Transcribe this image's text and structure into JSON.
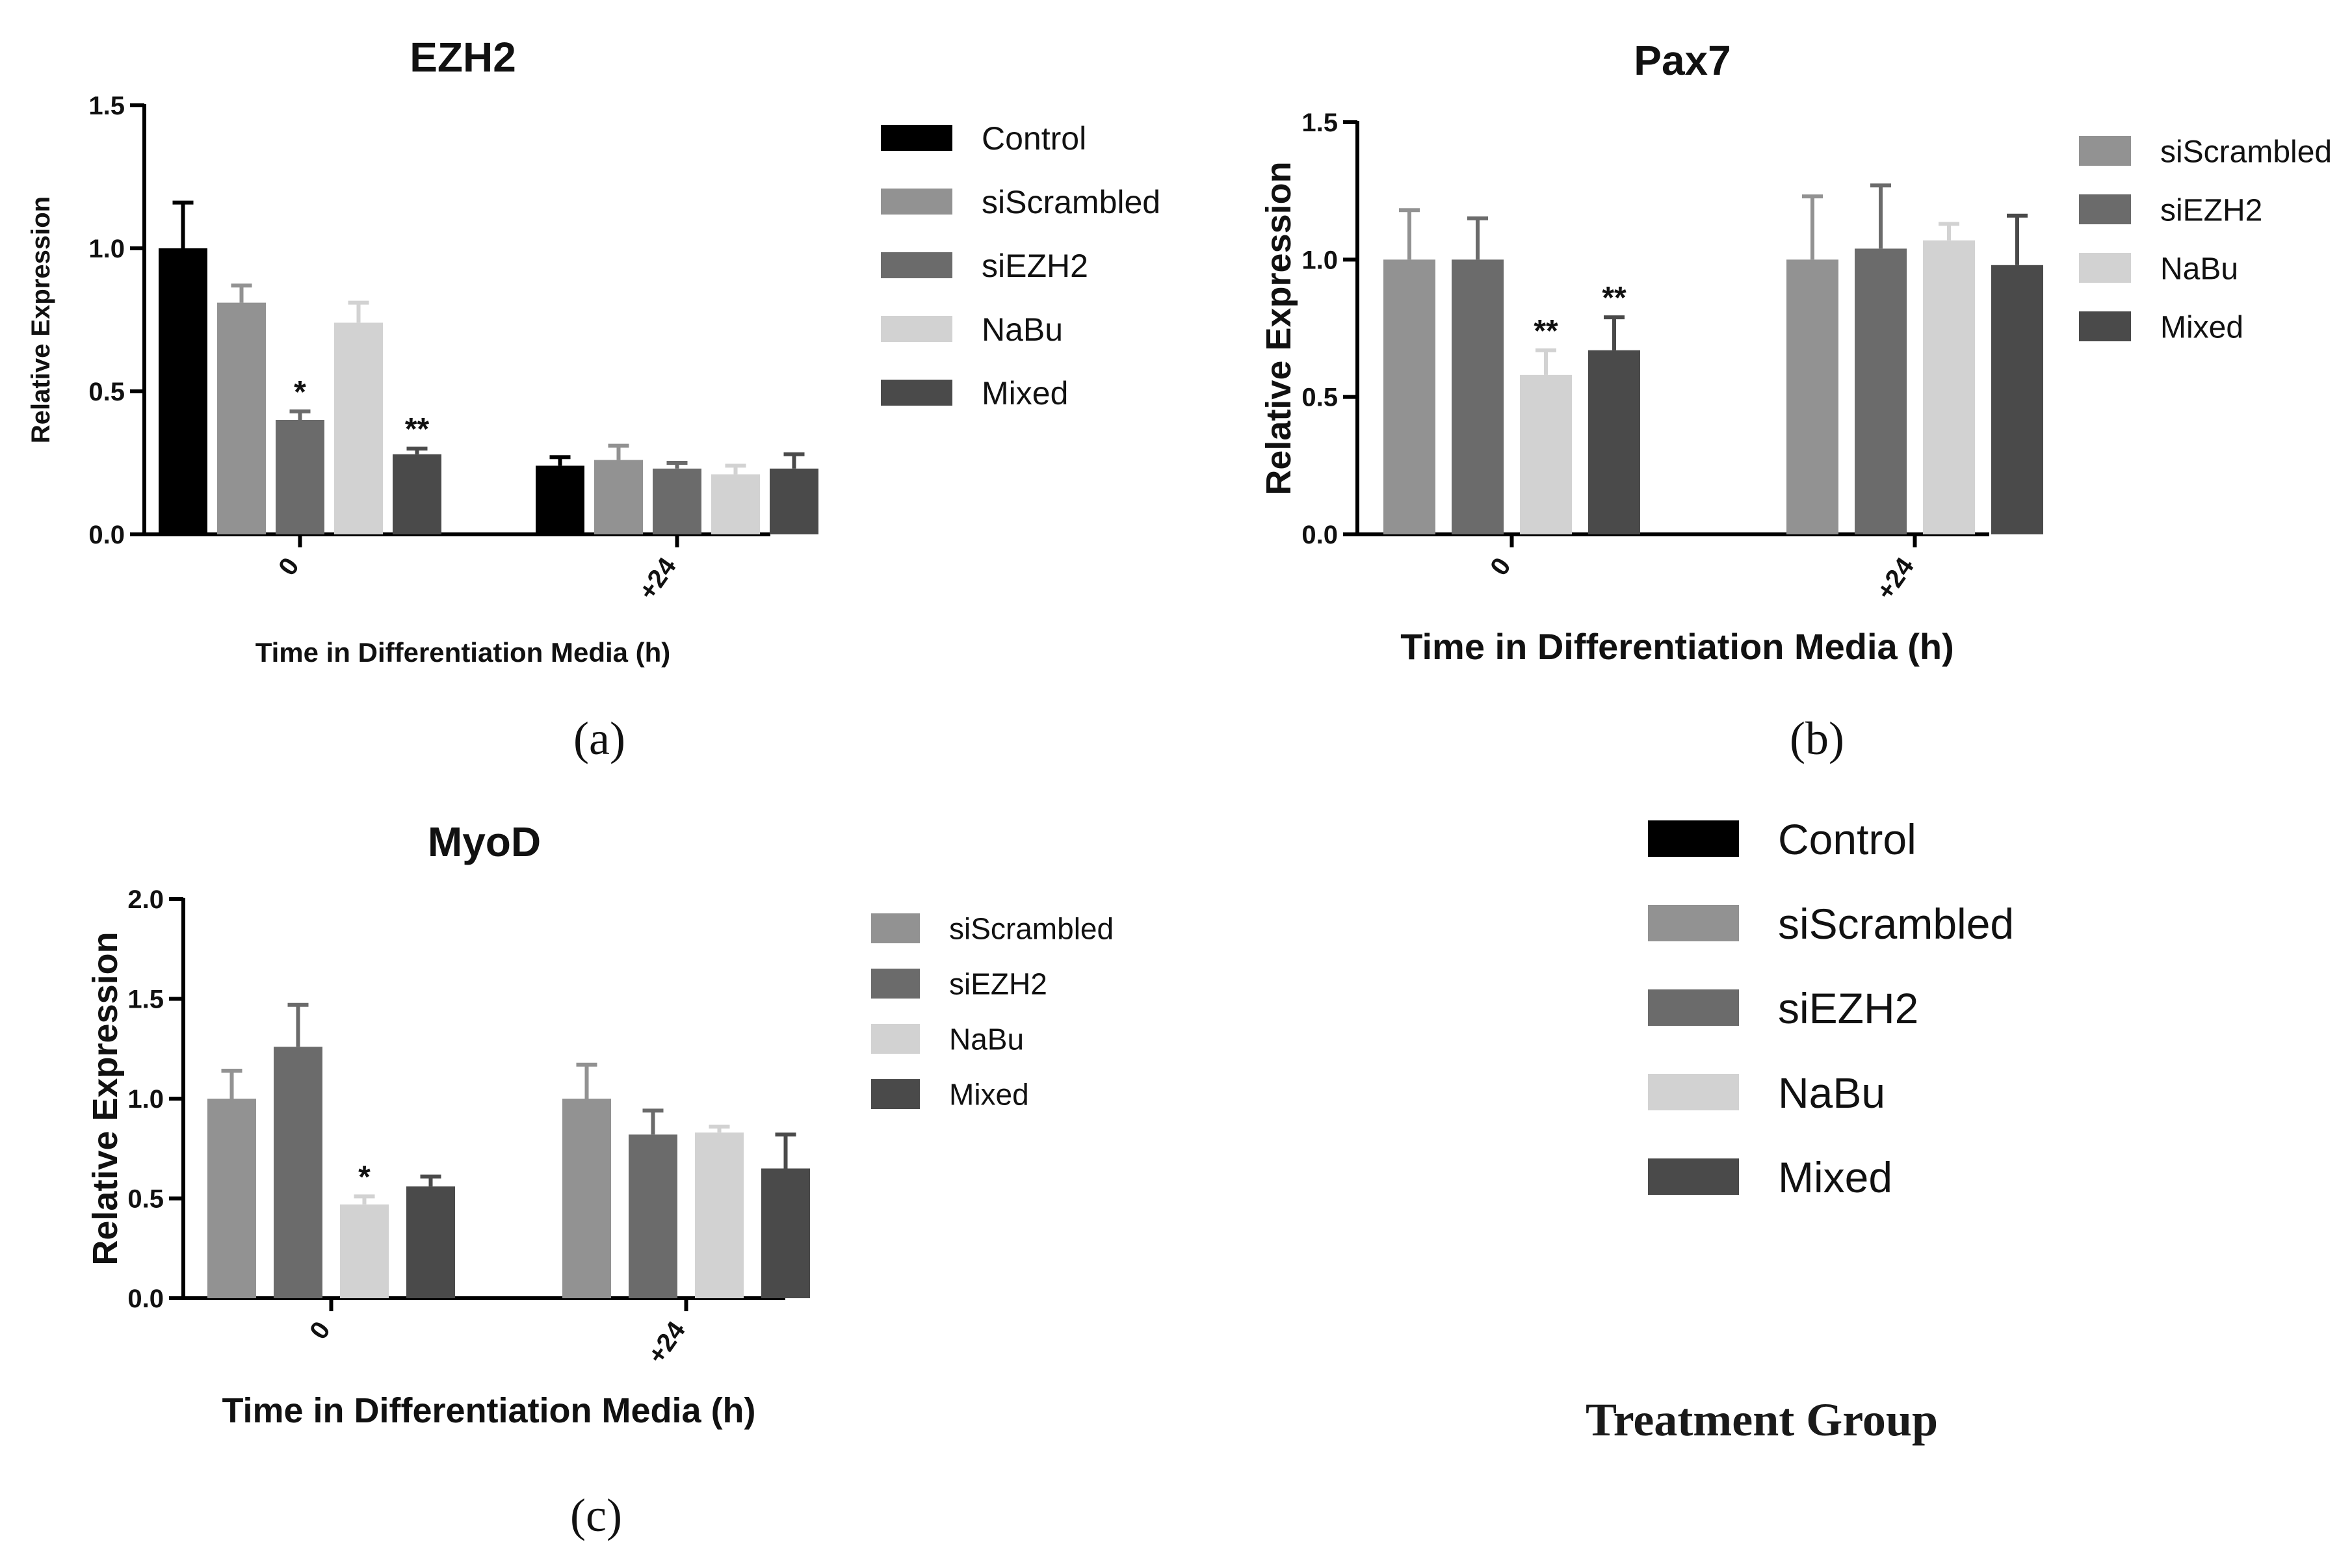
{
  "colors": {
    "Control": "#000000",
    "siScrambled": "#929292",
    "siEZH2": "#6b6b6b",
    "NaBu": "#d2d2d2",
    "Mixed": "#4a4a4a",
    "axis": "#000000"
  },
  "chart_data": [
    {
      "type": "bar",
      "title": "EZH2",
      "xlabel": "Time in Differentiation Media (h)",
      "ylabel": "Relative Expression",
      "categories": [
        "0",
        "+24"
      ],
      "ylim": [
        0,
        1.5
      ],
      "yticks": [
        "0.0",
        "0.5",
        "1.0",
        "1.5"
      ],
      "series": [
        {
          "name": "Control",
          "values": [
            1.0,
            0.24
          ],
          "errors": [
            0.16,
            0.03
          ]
        },
        {
          "name": "siScrambled",
          "values": [
            0.81,
            0.26
          ],
          "errors": [
            0.06,
            0.05
          ]
        },
        {
          "name": "siEZH2",
          "values": [
            0.4,
            0.23
          ],
          "errors": [
            0.03,
            0.02
          ]
        },
        {
          "name": "NaBu",
          "values": [
            0.74,
            0.21
          ],
          "errors": [
            0.07,
            0.03
          ]
        },
        {
          "name": "Mixed",
          "values": [
            0.28,
            0.23
          ],
          "errors": [
            0.02,
            0.05
          ]
        }
      ],
      "annotations": [
        [
          "*",
          "siEZH2",
          "0"
        ],
        [
          "**",
          "Mixed",
          "0"
        ]
      ],
      "legend": [
        "Control",
        "siScrambled",
        "siEZH2",
        "NaBu",
        "Mixed"
      ],
      "caption": "(a)"
    },
    {
      "type": "bar",
      "title": "Pax7",
      "xlabel": "Time in Differentiation Media (h)",
      "ylabel": "Relative Expression",
      "categories": [
        "0",
        "+24"
      ],
      "ylim": [
        0,
        1.5
      ],
      "yticks": [
        "0.0",
        "0.5",
        "1.0",
        "1.5"
      ],
      "series": [
        {
          "name": "siScrambled",
          "values": [
            1.0,
            1.0
          ],
          "errors": [
            0.18,
            0.23
          ]
        },
        {
          "name": "siEZH2",
          "values": [
            1.0,
            1.04
          ],
          "errors": [
            0.15,
            0.23
          ]
        },
        {
          "name": "NaBu",
          "values": [
            0.58,
            1.07
          ],
          "errors": [
            0.09,
            0.06
          ]
        },
        {
          "name": "Mixed",
          "values": [
            0.67,
            0.98
          ],
          "errors": [
            0.12,
            0.18
          ]
        }
      ],
      "annotations": [
        [
          "**",
          "NaBu",
          "0"
        ],
        [
          "**",
          "Mixed",
          "0"
        ]
      ],
      "legend": [
        "siScrambled",
        "siEZH2",
        "NaBu",
        "Mixed"
      ],
      "caption": "(b)"
    },
    {
      "type": "bar",
      "title": "MyoD",
      "xlabel": "Time in Differentiation Media (h)",
      "ylabel": "Relative Expression",
      "categories": [
        "0",
        "+24"
      ],
      "ylim": [
        0,
        2.0
      ],
      "yticks": [
        "0.0",
        "0.5",
        "1.0",
        "1.5",
        "2.0"
      ],
      "series": [
        {
          "name": "siScrambled",
          "values": [
            1.0,
            1.0
          ],
          "errors": [
            0.14,
            0.17
          ]
        },
        {
          "name": "siEZH2",
          "values": [
            1.26,
            0.82
          ],
          "errors": [
            0.21,
            0.12
          ]
        },
        {
          "name": "NaBu",
          "values": [
            0.47,
            0.83
          ],
          "errors": [
            0.04,
            0.03
          ]
        },
        {
          "name": "Mixed",
          "values": [
            0.56,
            0.65
          ],
          "errors": [
            0.05,
            0.17
          ]
        }
      ],
      "annotations": [
        [
          "*",
          "NaBu",
          "0"
        ]
      ],
      "legend": [
        "siScrambled",
        "siEZH2",
        "NaBu",
        "Mixed"
      ],
      "caption": "(c)"
    }
  ],
  "shared_legend": {
    "items": [
      "Control",
      "siScrambled",
      "siEZH2",
      "NaBu",
      "Mixed"
    ],
    "title": "Treatment Group"
  }
}
